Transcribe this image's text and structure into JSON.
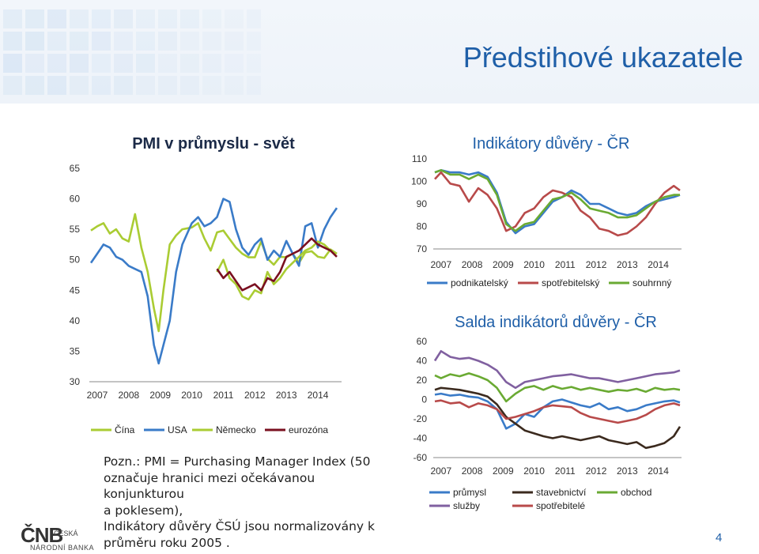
{
  "slide": {
    "title": "Předstihové ukazatele",
    "page_number": "4",
    "note_lines": [
      "Pozn.: PMI = Purchasing Manager Index (50",
      "označuje hranici mezi očekávanou konjunkturou",
      "a poklesem),",
      "Indikátory důvěry ČSÚ jsou normalizovány  k",
      "průměru roku 2005 ."
    ],
    "logo": {
      "mark": "ČNB",
      "line1": "ČESKÁ",
      "line2": "NÁRODNÍ BANKA"
    },
    "colors": {
      "title": "#1f5fa8",
      "header_band": "#eef3f9",
      "tiles": "#d4e3f3"
    }
  },
  "chart_data": [
    {
      "type": "line",
      "title": "PMI v průmyslu - svět",
      "x_ticks": [
        "2007",
        "2008",
        "2009",
        "2010",
        "2011",
        "2012",
        "2013",
        "2014"
      ],
      "xlim": [
        2006.75,
        2014.75
      ],
      "y_ticks": [
        65,
        60,
        55,
        50,
        45,
        40,
        35,
        30
      ],
      "ylim": [
        30,
        65
      ],
      "legend_position": "bottom",
      "series": [
        {
          "name": "Čína",
          "color": "#aacc33",
          "x": [
            2006.8,
            2007.0,
            2007.2,
            2007.4,
            2007.6,
            2007.8,
            2008.0,
            2008.2,
            2008.4,
            2008.6,
            2008.8,
            2008.95,
            2009.1,
            2009.3,
            2009.5,
            2009.7,
            2010.0,
            2010.2,
            2010.4,
            2010.6,
            2010.8,
            2011.0,
            2011.2,
            2011.4,
            2011.6,
            2011.8,
            2012.0,
            2012.2,
            2012.4,
            2012.6,
            2012.8,
            2013.0,
            2013.2,
            2013.4,
            2013.6,
            2013.8,
            2014.0,
            2014.2,
            2014.4,
            2014.6
          ],
          "y": [
            54.8,
            55.5,
            56.0,
            54.3,
            55.0,
            53.5,
            53.0,
            57.5,
            52.0,
            48.0,
            42.0,
            38.3,
            45.0,
            52.5,
            54.0,
            55.0,
            55.3,
            56.0,
            53.5,
            51.5,
            54.5,
            54.8,
            53.4,
            52.0,
            51.0,
            50.4,
            50.4,
            53.0,
            50.2,
            49.2,
            50.5,
            50.4,
            51.0,
            49.5,
            51.2,
            51.4,
            50.5,
            50.3,
            51.7,
            51.0
          ]
        },
        {
          "name": "USA",
          "color": "#3a7bc8",
          "x": [
            2006.8,
            2007.0,
            2007.2,
            2007.4,
            2007.6,
            2007.8,
            2008.0,
            2008.2,
            2008.4,
            2008.6,
            2008.8,
            2008.95,
            2009.1,
            2009.3,
            2009.5,
            2009.7,
            2010.0,
            2010.2,
            2010.4,
            2010.6,
            2010.8,
            2011.0,
            2011.2,
            2011.4,
            2011.6,
            2011.8,
            2012.0,
            2012.2,
            2012.4,
            2012.6,
            2012.8,
            2013.0,
            2013.2,
            2013.4,
            2013.6,
            2013.8,
            2014.0,
            2014.2,
            2014.4,
            2014.6
          ],
          "y": [
            49.5,
            51.0,
            52.5,
            52.0,
            50.5,
            50.0,
            49.0,
            48.5,
            48.0,
            44.0,
            36.0,
            33.0,
            36.0,
            40.0,
            48.0,
            52.5,
            56.0,
            57.0,
            55.5,
            56.0,
            57.0,
            60.0,
            59.5,
            55.0,
            52.0,
            50.8,
            52.5,
            53.5,
            50.0,
            51.5,
            50.5,
            53.1,
            51.0,
            49.0,
            55.5,
            56.0,
            52.0,
            55.0,
            57.0,
            58.5
          ]
        },
        {
          "name": "Německo",
          "color": "#aacc33",
          "x": [
            2010.8,
            2011.0,
            2011.2,
            2011.4,
            2011.6,
            2011.8,
            2012.0,
            2012.2,
            2012.4,
            2012.6,
            2012.8,
            2013.0,
            2013.2,
            2013.4,
            2013.6,
            2013.8,
            2014.0,
            2014.2,
            2014.4,
            2014.6
          ],
          "y": [
            48.0,
            50.0,
            47.0,
            46.0,
            44.0,
            43.5,
            45.0,
            44.5,
            48.0,
            46.0,
            47.0,
            48.5,
            49.5,
            50.5,
            51.5,
            52.0,
            53.0,
            52.5,
            51.5,
            51.0
          ]
        },
        {
          "name": "eurozóna",
          "color": "#7a1020",
          "x": [
            2010.8,
            2011.0,
            2011.2,
            2011.4,
            2011.6,
            2011.8,
            2012.0,
            2012.2,
            2012.4,
            2012.6,
            2012.8,
            2013.0,
            2013.2,
            2013.4,
            2013.6,
            2013.8,
            2014.0,
            2014.2,
            2014.4,
            2014.6
          ],
          "y": [
            48.5,
            47.0,
            48.0,
            46.5,
            45.0,
            45.5,
            46.0,
            45.0,
            47.0,
            46.5,
            48.0,
            50.5,
            51.0,
            51.5,
            52.5,
            53.5,
            52.5,
            52.0,
            51.5,
            50.5
          ]
        }
      ]
    },
    {
      "type": "line",
      "title": "Indikátory důvěry - ČR",
      "x_ticks": [
        "2007",
        "2008",
        "2009",
        "2010",
        "2011",
        "2012",
        "2013",
        "2014"
      ],
      "xlim": [
        2006.75,
        2014.75
      ],
      "y_ticks": [
        110,
        100,
        90,
        80,
        70
      ],
      "ylim": [
        70,
        110
      ],
      "legend_position": "bottom",
      "series": [
        {
          "name": "podnikatelský",
          "color": "#3a7bc8",
          "x": [
            2006.8,
            2007.0,
            2007.3,
            2007.6,
            2007.9,
            2008.2,
            2008.5,
            2008.8,
            2009.1,
            2009.4,
            2009.7,
            2010.0,
            2010.3,
            2010.6,
            2010.9,
            2011.2,
            2011.5,
            2011.8,
            2012.1,
            2012.4,
            2012.7,
            2013.0,
            2013.3,
            2013.6,
            2013.9,
            2014.2,
            2014.5,
            2014.7
          ],
          "y": [
            104,
            105,
            104,
            104,
            103,
            104,
            102,
            95,
            82,
            77,
            80,
            81,
            86,
            91,
            93,
            96,
            94,
            90,
            90,
            88,
            86,
            85,
            86,
            89,
            91,
            92,
            93,
            94
          ]
        },
        {
          "name": "spotřebitelský",
          "color": "#b84a4a",
          "x": [
            2006.8,
            2007.0,
            2007.3,
            2007.6,
            2007.9,
            2008.2,
            2008.5,
            2008.8,
            2009.1,
            2009.4,
            2009.7,
            2010.0,
            2010.3,
            2010.6,
            2010.9,
            2011.2,
            2011.5,
            2011.8,
            2012.1,
            2012.4,
            2012.7,
            2013.0,
            2013.3,
            2013.6,
            2013.9,
            2014.2,
            2014.5,
            2014.7
          ],
          "y": [
            101,
            104,
            99,
            98,
            91,
            97,
            94,
            88,
            78,
            80,
            86,
            88,
            93,
            96,
            95,
            93,
            87,
            84,
            79,
            78,
            76,
            77,
            80,
            84,
            90,
            95,
            98,
            96
          ]
        },
        {
          "name": "souhrnný",
          "color": "#6aaa33",
          "x": [
            2006.8,
            2007.0,
            2007.3,
            2007.6,
            2007.9,
            2008.2,
            2008.5,
            2008.8,
            2009.1,
            2009.4,
            2009.7,
            2010.0,
            2010.3,
            2010.6,
            2010.9,
            2011.2,
            2011.5,
            2011.8,
            2012.1,
            2012.4,
            2012.7,
            2013.0,
            2013.3,
            2013.6,
            2013.9,
            2014.2,
            2014.5,
            2014.7
          ],
          "y": [
            104,
            105,
            103,
            103,
            101,
            103,
            101,
            94,
            81,
            78,
            81,
            82,
            87,
            92,
            93,
            95,
            92,
            88,
            87,
            86,
            84,
            84,
            85,
            88,
            91,
            93,
            94,
            94
          ]
        }
      ]
    },
    {
      "type": "line",
      "title": "Salda indikátorů důvěry - ČR",
      "x_ticks": [
        "2007",
        "2008",
        "2009",
        "2010",
        "2011",
        "2012",
        "2013",
        "2014"
      ],
      "xlim": [
        2006.75,
        2014.75
      ],
      "y_ticks": [
        60,
        40,
        20,
        0,
        -20,
        -40,
        -60
      ],
      "ylim": [
        -60,
        60
      ],
      "legend_position": "bottom",
      "series": [
        {
          "name": "průmysl",
          "color": "#3a7bc8",
          "x": [
            2006.8,
            2007.0,
            2007.3,
            2007.6,
            2007.9,
            2008.2,
            2008.5,
            2008.8,
            2009.1,
            2009.4,
            2009.7,
            2010.0,
            2010.3,
            2010.6,
            2010.9,
            2011.2,
            2011.5,
            2011.8,
            2012.1,
            2012.4,
            2012.7,
            2013.0,
            2013.3,
            2013.6,
            2013.9,
            2014.2,
            2014.5,
            2014.7
          ],
          "y": [
            5,
            6,
            4,
            5,
            3,
            2,
            -2,
            -10,
            -30,
            -25,
            -15,
            -18,
            -8,
            -2,
            0,
            -3,
            -6,
            -8,
            -4,
            -10,
            -8,
            -12,
            -10,
            -6,
            -4,
            -2,
            -1,
            -3
          ]
        },
        {
          "name": "stavebnictví",
          "color": "#3b2a1e",
          "x": [
            2006.8,
            2007.0,
            2007.3,
            2007.6,
            2007.9,
            2008.2,
            2008.5,
            2008.8,
            2009.1,
            2009.4,
            2009.7,
            2010.0,
            2010.3,
            2010.6,
            2010.9,
            2011.2,
            2011.5,
            2011.8,
            2012.1,
            2012.4,
            2012.7,
            2013.0,
            2013.3,
            2013.6,
            2013.9,
            2014.2,
            2014.5,
            2014.7
          ],
          "y": [
            10,
            12,
            11,
            10,
            8,
            6,
            3,
            -5,
            -18,
            -25,
            -32,
            -35,
            -38,
            -40,
            -38,
            -40,
            -42,
            -40,
            -38,
            -42,
            -44,
            -46,
            -44,
            -50,
            -48,
            -45,
            -38,
            -28
          ]
        },
        {
          "name": "obchod",
          "color": "#6aaa33",
          "x": [
            2006.8,
            2007.0,
            2007.3,
            2007.6,
            2007.9,
            2008.2,
            2008.5,
            2008.8,
            2009.1,
            2009.4,
            2009.7,
            2010.0,
            2010.3,
            2010.6,
            2010.9,
            2011.2,
            2011.5,
            2011.8,
            2012.1,
            2012.4,
            2012.7,
            2013.0,
            2013.3,
            2013.6,
            2013.9,
            2014.2,
            2014.5,
            2014.7
          ],
          "y": [
            25,
            22,
            26,
            24,
            27,
            24,
            20,
            12,
            -2,
            6,
            12,
            14,
            10,
            14,
            11,
            13,
            10,
            12,
            10,
            8,
            10,
            9,
            11,
            8,
            12,
            10,
            11,
            10
          ]
        },
        {
          "name": "služby",
          "color": "#8060a0",
          "x": [
            2006.8,
            2007.0,
            2007.3,
            2007.6,
            2007.9,
            2008.2,
            2008.5,
            2008.8,
            2009.1,
            2009.4,
            2009.7,
            2010.0,
            2010.3,
            2010.6,
            2010.9,
            2011.2,
            2011.5,
            2011.8,
            2012.1,
            2012.4,
            2012.7,
            2013.0,
            2013.3,
            2013.6,
            2013.9,
            2014.2,
            2014.5,
            2014.7
          ],
          "y": [
            40,
            50,
            44,
            42,
            43,
            40,
            36,
            30,
            18,
            12,
            18,
            20,
            22,
            24,
            25,
            26,
            24,
            22,
            22,
            20,
            18,
            20,
            22,
            24,
            26,
            27,
            28,
            30
          ]
        },
        {
          "name": "spotřebitelé",
          "color": "#b84a4a",
          "x": [
            2006.8,
            2007.0,
            2007.3,
            2007.6,
            2007.9,
            2008.2,
            2008.5,
            2008.8,
            2009.1,
            2009.4,
            2009.7,
            2010.0,
            2010.3,
            2010.6,
            2010.9,
            2011.2,
            2011.5,
            2011.8,
            2012.1,
            2012.4,
            2012.7,
            2013.0,
            2013.3,
            2013.6,
            2013.9,
            2014.2,
            2014.5,
            2014.7
          ],
          "y": [
            -2,
            -1,
            -4,
            -3,
            -8,
            -4,
            -6,
            -10,
            -20,
            -18,
            -15,
            -12,
            -8,
            -6,
            -7,
            -8,
            -14,
            -18,
            -20,
            -22,
            -24,
            -22,
            -20,
            -16,
            -10,
            -6,
            -4,
            -6
          ]
        }
      ]
    }
  ]
}
